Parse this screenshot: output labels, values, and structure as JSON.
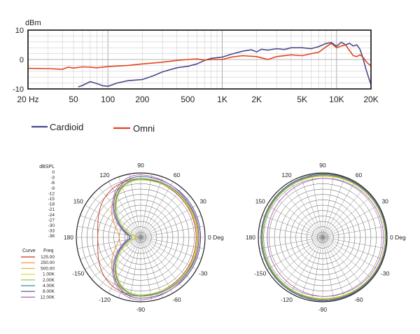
{
  "chart_data": [
    {
      "type": "line",
      "title": "",
      "ylabel": "dBm",
      "xscale": "log",
      "xlim": [
        20,
        20000
      ],
      "ylim": [
        -10,
        10
      ],
      "x_tick_values": [
        20,
        50,
        100,
        200,
        500,
        1000,
        2000,
        5000,
        10000,
        20000
      ],
      "x_tick_labels": [
        "20 Hz",
        "50",
        "100",
        "200",
        "500",
        "1K",
        "2K",
        "5K",
        "10K",
        "20K"
      ],
      "y_tick_values": [
        10,
        0,
        -10
      ],
      "y_tick_labels": [
        "10",
        "0",
        "-10"
      ],
      "grid": true,
      "legend_position": "bottom-left",
      "series": [
        {
          "name": "Cardioid",
          "color": "#4a4a8c",
          "points": [
            [
              55,
              -9.3
            ],
            [
              60,
              -8.8
            ],
            [
              70,
              -7.5
            ],
            [
              80,
              -8.2
            ],
            [
              90,
              -8.9
            ],
            [
              100,
              -9.1
            ],
            [
              120,
              -8.0
            ],
            [
              150,
              -7.2
            ],
            [
              200,
              -6.8
            ],
            [
              250,
              -5.5
            ],
            [
              300,
              -4.2
            ],
            [
              400,
              -2.8
            ],
            [
              500,
              -2.3
            ],
            [
              600,
              -1.5
            ],
            [
              700,
              -0.3
            ],
            [
              800,
              0.4
            ],
            [
              1000,
              0.8
            ],
            [
              1200,
              1.8
            ],
            [
              1500,
              2.8
            ],
            [
              1800,
              3.3
            ],
            [
              2000,
              2.6
            ],
            [
              2200,
              3.5
            ],
            [
              2500,
              3.2
            ],
            [
              3000,
              3.7
            ],
            [
              3500,
              3.4
            ],
            [
              4000,
              4.0
            ],
            [
              5000,
              4.0
            ],
            [
              6000,
              3.7
            ],
            [
              7000,
              4.4
            ],
            [
              8000,
              5.4
            ],
            [
              9000,
              5.8
            ],
            [
              10000,
              4.5
            ],
            [
              11000,
              5.9
            ],
            [
              12000,
              5.0
            ],
            [
              13000,
              5.5
            ],
            [
              14000,
              4.6
            ],
            [
              15000,
              5.0
            ],
            [
              16000,
              3.5
            ],
            [
              17000,
              0.5
            ],
            [
              18000,
              -3.0
            ],
            [
              19000,
              -6.0
            ],
            [
              20000,
              -8.5
            ]
          ]
        },
        {
          "name": "Omni",
          "color": "#e2431e",
          "points": [
            [
              20,
              -3.0
            ],
            [
              30,
              -3.1
            ],
            [
              40,
              -3.3
            ],
            [
              45,
              -2.6
            ],
            [
              50,
              -2.9
            ],
            [
              60,
              -2.5
            ],
            [
              70,
              -2.6
            ],
            [
              80,
              -2.8
            ],
            [
              100,
              -2.4
            ],
            [
              150,
              -2.0
            ],
            [
              200,
              -1.5
            ],
            [
              300,
              -0.9
            ],
            [
              400,
              -0.3
            ],
            [
              500,
              0.0
            ],
            [
              600,
              0.2
            ],
            [
              700,
              -0.2
            ],
            [
              800,
              0.0
            ],
            [
              1000,
              0.0
            ],
            [
              1200,
              0.8
            ],
            [
              1500,
              1.3
            ],
            [
              2000,
              1.0
            ],
            [
              2500,
              0.0
            ],
            [
              3000,
              1.0
            ],
            [
              4000,
              1.6
            ],
            [
              5000,
              1.3
            ],
            [
              6000,
              2.0
            ],
            [
              7000,
              2.5
            ],
            [
              8000,
              4.2
            ],
            [
              9000,
              5.5
            ],
            [
              10000,
              4.0
            ],
            [
              11000,
              4.6
            ],
            [
              12000,
              5.0
            ],
            [
              13000,
              3.0
            ],
            [
              14000,
              1.3
            ],
            [
              15000,
              1.0
            ],
            [
              16000,
              1.6
            ],
            [
              17000,
              0.8
            ],
            [
              18000,
              -0.5
            ],
            [
              19000,
              -1.5
            ],
            [
              20000,
              -2.2
            ]
          ]
        }
      ]
    },
    {
      "type": "polar",
      "title": "",
      "angle_tick_values": [
        90,
        60,
        30,
        0,
        -30,
        -60,
        -90,
        -120,
        -150,
        180,
        150,
        120
      ],
      "angle_tick_labels": [
        "90",
        "60",
        "30",
        "0 Deg",
        "-30",
        "-60",
        "-90",
        "-120",
        "-150",
        "180",
        "150",
        "120"
      ],
      "radial_unit": "dBSPL",
      "radial_ticks": [
        "0",
        "-3",
        "-6",
        "-9",
        "-12",
        "-15",
        "-18",
        "-21",
        "-24",
        "-27",
        "-30",
        "-33",
        "-36"
      ],
      "rlim": [
        -36,
        0
      ],
      "legend_header_curve": "Curve",
      "legend_header_freq": "Freq",
      "legend_position": "left",
      "series": [
        {
          "name": "125.00",
          "color": "#c0391b",
          "pattern": "cardioid_rear_lobe",
          "front": -5.0,
          "side": -3.5,
          "rear": -12.0
        },
        {
          "name": "250.00",
          "color": "#f08a2a",
          "pattern": "cardioid",
          "front": -4.0,
          "side": -3.5,
          "rear": -24.0
        },
        {
          "name": "500.00",
          "color": "#e4b437",
          "pattern": "cardioid",
          "front": -4.5,
          "side": -3.0,
          "rear": -34.0
        },
        {
          "name": "1.00K",
          "color": "#d9dc55",
          "pattern": "cardioid",
          "front": -4.0,
          "side": -4.0,
          "rear": -33.0
        },
        {
          "name": "2.00K",
          "color": "#8fbf3c",
          "pattern": "cardioid",
          "front": -4.0,
          "side": -3.0,
          "rear": -31.0
        },
        {
          "name": "4.00K",
          "color": "#3d8f8f",
          "pattern": "cardioid",
          "front": -3.5,
          "side": -3.5,
          "rear": -31.0
        },
        {
          "name": "8.00K",
          "color": "#4a4a8c",
          "pattern": "cardioid",
          "front": -2.5,
          "side": -2.0,
          "rear": -30.0
        },
        {
          "name": "12.00K",
          "color": "#b05fb0",
          "pattern": "cardioid",
          "front": -3.5,
          "side": -1.0,
          "rear": -29.0
        }
      ]
    },
    {
      "type": "polar",
      "title": "",
      "angle_tick_values": [
        90,
        60,
        30,
        0,
        -30,
        -60,
        -90,
        -120,
        -150,
        180,
        150,
        120
      ],
      "angle_tick_labels": [
        "90",
        "60",
        "30",
        "0 Deg",
        "-30",
        "-60",
        "-90",
        "-120",
        "-150",
        "180",
        "150",
        "120"
      ],
      "rlim": [
        -36,
        0
      ],
      "series": [
        {
          "name": "125.00",
          "color": "#c0391b",
          "front": -1.0,
          "side": -1.5,
          "rear": -1.5
        },
        {
          "name": "250.00",
          "color": "#f08a2a",
          "front": -1.0,
          "side": -1.2,
          "rear": -1.5
        },
        {
          "name": "500.00",
          "color": "#e4b437",
          "front": -1.0,
          "side": -1.0,
          "rear": -2.0
        },
        {
          "name": "1.00K",
          "color": "#d9dc55",
          "front": -1.0,
          "side": -2.0,
          "rear": -2.0
        },
        {
          "name": "2.00K",
          "color": "#8fbf3c",
          "front": -1.0,
          "side": -1.5,
          "rear": -2.5
        },
        {
          "name": "4.00K",
          "color": "#3d8f8f",
          "front": -0.5,
          "side": -1.0,
          "rear": -2.0
        },
        {
          "name": "8.00K",
          "color": "#4a4a8c",
          "front": -0.5,
          "side": -0.5,
          "rear": -1.5
        },
        {
          "name": "12.00K",
          "color": "#b05fb0",
          "front": -2.0,
          "side": -3.0,
          "rear": -5.0
        }
      ]
    }
  ]
}
